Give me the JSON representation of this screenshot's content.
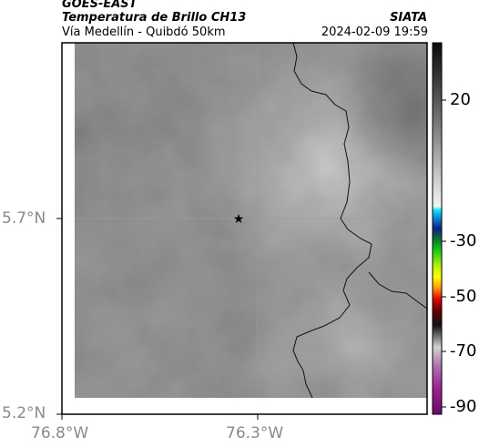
{
  "header": {
    "satellite": "GOES-EAST",
    "product": "Temperatura de Brillo CH13",
    "location": "Vía Medellín - Quibdó 50km",
    "source": "SIATA",
    "datetime": "2024-02-09 19:59"
  },
  "axes": {
    "lon_ticks": [
      "76.8°W",
      "76.3°W"
    ],
    "lat_ticks": [
      "5.7°N",
      "5.2°N"
    ]
  },
  "colorbar": {
    "ticks": [
      "20",
      "-30",
      "-50",
      "-70",
      "-90"
    ]
  },
  "marker": {
    "icon": "star-icon"
  },
  "colors": {
    "map_base": "#7e7e7e",
    "frame": "#000000",
    "tick_text": "#8a8a8a"
  }
}
